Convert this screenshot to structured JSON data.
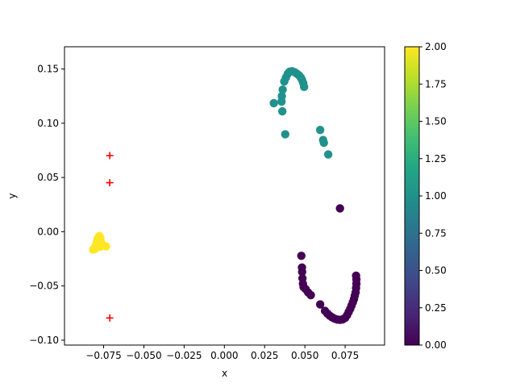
{
  "chart_data": {
    "type": "scatter",
    "xlabel": "x",
    "ylabel": "y",
    "xlim": [
      -0.0993,
      0.0995
    ],
    "ylim": [
      -0.1045,
      0.1705
    ],
    "xticks": [
      -0.075,
      -0.05,
      -0.025,
      0.0,
      0.025,
      0.05,
      0.075
    ],
    "xtick_labels": [
      "−0.075",
      "−0.050",
      "−0.025",
      "0.000",
      "0.025",
      "0.050",
      "0.075"
    ],
    "yticks": [
      -0.1,
      -0.05,
      0.0,
      0.05,
      0.1,
      0.15
    ],
    "ytick_labels": [
      "−0.10",
      "−0.05",
      "0.00",
      "0.05",
      "0.10",
      "0.15"
    ],
    "grid": false,
    "colorbar": {
      "colormap": "viridis",
      "range": [
        0.0,
        2.0
      ],
      "ticks": [
        0.0,
        0.25,
        0.5,
        0.75,
        1.0,
        1.25,
        1.5,
        1.75,
        2.0
      ],
      "tick_labels": [
        "0.00",
        "0.25",
        "0.50",
        "0.75",
        "1.00",
        "1.25",
        "1.50",
        "1.75",
        "2.00"
      ]
    },
    "clusters": [
      {
        "cluster_value": 0,
        "color": "#440154",
        "points": [
          [
            0.0718,
            0.0215
          ],
          [
            0.0478,
            -0.0222
          ],
          [
            0.0482,
            -0.033
          ],
          [
            0.0483,
            -0.037
          ],
          [
            0.0485,
            -0.043
          ],
          [
            0.0488,
            -0.048
          ],
          [
            0.0492,
            -0.051
          ],
          [
            0.0505,
            -0.053
          ],
          [
            0.052,
            -0.056
          ],
          [
            0.0537,
            -0.0585
          ],
          [
            0.0595,
            -0.067
          ],
          [
            0.0625,
            -0.073
          ],
          [
            0.064,
            -0.0755
          ],
          [
            0.0655,
            -0.0775
          ],
          [
            0.067,
            -0.079
          ],
          [
            0.0685,
            -0.0802
          ],
          [
            0.07,
            -0.081
          ],
          [
            0.0718,
            -0.0812
          ],
          [
            0.0735,
            -0.0808
          ],
          [
            0.075,
            -0.0795
          ],
          [
            0.0762,
            -0.077
          ],
          [
            0.0772,
            -0.074
          ],
          [
            0.0782,
            -0.071
          ],
          [
            0.079,
            -0.068
          ],
          [
            0.0798,
            -0.065
          ],
          [
            0.0805,
            -0.062
          ],
          [
            0.081,
            -0.059
          ],
          [
            0.0815,
            -0.056
          ],
          [
            0.0818,
            -0.052
          ],
          [
            0.082,
            -0.048
          ],
          [
            0.082,
            -0.044
          ],
          [
            0.0818,
            -0.0405
          ]
        ]
      },
      {
        "cluster_value": 1,
        "color": "#21918c",
        "points": [
          [
            0.0307,
            0.1185
          ],
          [
            0.0355,
            0.12
          ],
          [
            0.0357,
            0.125
          ],
          [
            0.036,
            0.111
          ],
          [
            0.0362,
            0.131
          ],
          [
            0.0372,
            0.1385
          ],
          [
            0.0382,
            0.142
          ],
          [
            0.0393,
            0.1455
          ],
          [
            0.0405,
            0.1475
          ],
          [
            0.042,
            0.148
          ],
          [
            0.0437,
            0.147
          ],
          [
            0.0452,
            0.1455
          ],
          [
            0.0465,
            0.144
          ],
          [
            0.0475,
            0.142
          ],
          [
            0.0482,
            0.14
          ],
          [
            0.049,
            0.137
          ],
          [
            0.0495,
            0.1335
          ],
          [
            0.0378,
            0.0898
          ],
          [
            0.0595,
            0.0938
          ],
          [
            0.0613,
            0.0845
          ],
          [
            0.0618,
            0.082
          ],
          [
            0.0645,
            0.0712
          ]
        ]
      },
      {
        "cluster_value": 2,
        "color": "#fde725",
        "points": [
          [
            -0.0815,
            -0.0165
          ],
          [
            -0.0805,
            -0.016
          ],
          [
            -0.08,
            -0.013
          ],
          [
            -0.0793,
            -0.01
          ],
          [
            -0.0788,
            -0.007
          ],
          [
            -0.0782,
            -0.005
          ],
          [
            -0.0776,
            -0.004
          ],
          [
            -0.077,
            -0.006
          ],
          [
            -0.0765,
            -0.01
          ],
          [
            -0.0773,
            -0.014
          ],
          [
            -0.0735,
            -0.0135
          ]
        ]
      }
    ],
    "markers": {
      "style": "plus",
      "color": "#ff0000",
      "points": [
        [
          -0.0712,
          0.0702
        ],
        [
          -0.0712,
          0.0452
        ],
        [
          -0.0712,
          -0.0795
        ]
      ]
    }
  }
}
